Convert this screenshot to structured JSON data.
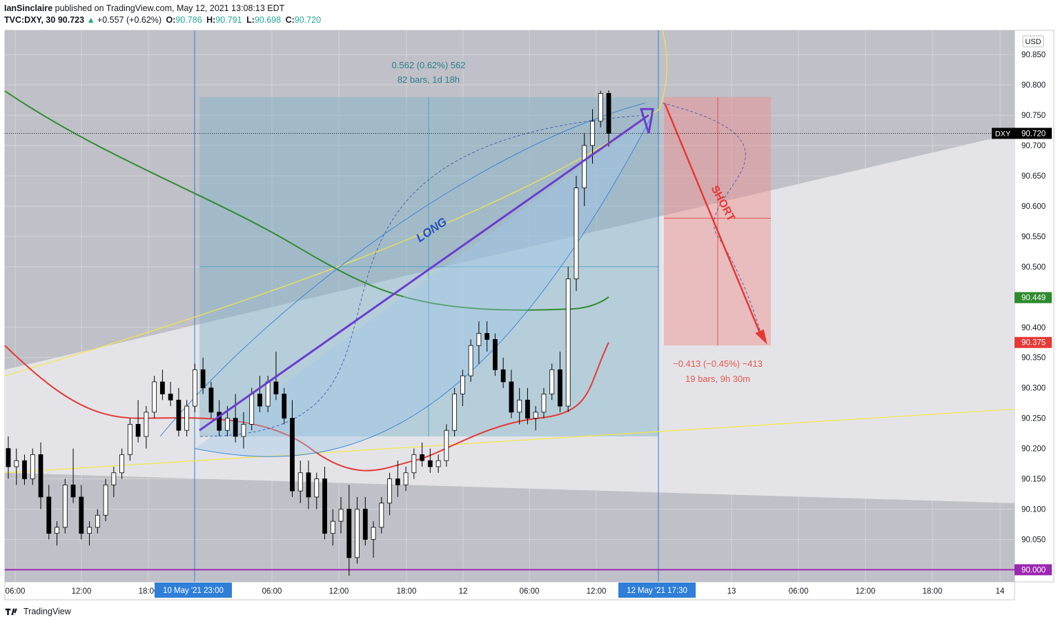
{
  "header": {
    "user": "IanSinclaire",
    "published_text": "published on TradingView.com, May 12, 2021 13:08:13 EDT",
    "symbol": "TVC:DXY, 30",
    "last": "90.723",
    "change": "+0.557 (+0.62%)",
    "o_label": "O:",
    "o_value": "90.786",
    "h_label": "H:",
    "h_value": "90.791",
    "l_label": "L:",
    "l_value": "90.698",
    "c_label": "C:",
    "c_value": "90.720"
  },
  "footer": {
    "brand": "TradingView"
  },
  "colors": {
    "up": "#26a69a",
    "bg": "#ffffff",
    "grid": "#e6e6e6",
    "long_zone": "#7fb3c8",
    "short_zone": "#f08c8c",
    "arrow_long": "#6a3dd1",
    "arrow_short": "#e53935",
    "ma_green": "#2e8b2e",
    "ma_red": "#e53935",
    "yellow": "#f5e642",
    "blue_line": "#2f7fd8",
    "purple_line": "#9c27b0"
  },
  "chart_data": {
    "type": "candlestick",
    "symbol": "DXY",
    "interval": "30",
    "currency": "USD",
    "ylim": [
      89.98,
      90.89
    ],
    "y_ticks": [
      "90.850",
      "90.800",
      "90.750",
      "90.700",
      "90.650",
      "90.600",
      "90.550",
      "90.500",
      "90.400",
      "90.350",
      "90.300",
      "90.250",
      "90.200",
      "90.150",
      "90.100",
      "90.050"
    ],
    "x_ticks": [
      "06:00",
      "12:00",
      "18:00",
      "06:00",
      "12:00",
      "18:00",
      "12",
      "06:00",
      "12:00",
      "13",
      "06:00",
      "12:00",
      "18:00",
      "14"
    ],
    "x_highlights": [
      "10 May '21  23:00",
      "12 May '21  17:30"
    ],
    "price_labels": [
      {
        "label": "DXY",
        "value": "90.720",
        "color": "#000000"
      },
      {
        "value": "90.449",
        "color": "#2e8b2e"
      },
      {
        "value": "90.375",
        "color": "#e53935"
      },
      {
        "value": "90.000",
        "color": "#9c27b0"
      }
    ],
    "annotations": {
      "long_label": "LONG",
      "short_label": "SHORT",
      "long_measure_1": "0.562 (0.62%) 562",
      "long_measure_2": "82 bars, 1d 18h",
      "short_measure_1": "−0.413 (−0.45%) −413",
      "short_measure_2": "19 bars, 9h 30m"
    },
    "levels": {
      "horizontal_purple": 90.0,
      "long_zone": [
        90.22,
        90.78
      ],
      "short_zone": [
        90.37,
        90.78
      ]
    },
    "candles": [
      [
        90.2,
        90.22,
        90.15,
        90.17
      ],
      [
        90.17,
        90.2,
        90.14,
        90.18
      ],
      [
        90.18,
        90.19,
        90.14,
        90.15
      ],
      [
        90.15,
        90.2,
        90.14,
        90.19
      ],
      [
        90.19,
        90.21,
        90.1,
        90.12
      ],
      [
        90.12,
        90.14,
        90.05,
        90.06
      ],
      [
        90.06,
        90.08,
        90.04,
        90.07
      ],
      [
        90.07,
        90.15,
        90.06,
        90.14
      ],
      [
        90.14,
        90.2,
        90.11,
        90.12
      ],
      [
        90.12,
        90.14,
        90.05,
        90.06
      ],
      [
        90.06,
        90.08,
        90.04,
        90.07
      ],
      [
        90.07,
        90.1,
        90.06,
        90.09
      ],
      [
        90.09,
        90.15,
        90.08,
        90.14
      ],
      [
        90.14,
        90.17,
        90.12,
        90.16
      ],
      [
        90.16,
        90.2,
        90.15,
        90.19
      ],
      [
        90.19,
        90.25,
        90.18,
        90.24
      ],
      [
        90.24,
        90.28,
        90.21,
        90.22
      ],
      [
        90.22,
        90.27,
        90.2,
        90.26
      ],
      [
        90.26,
        90.32,
        90.25,
        90.31
      ],
      [
        90.31,
        90.33,
        90.28,
        90.29
      ],
      [
        90.29,
        90.31,
        90.27,
        90.28
      ],
      [
        90.28,
        90.3,
        90.22,
        90.23
      ],
      [
        90.23,
        90.28,
        90.22,
        90.27
      ],
      [
        90.27,
        90.34,
        90.26,
        90.33
      ],
      [
        90.33,
        90.35,
        90.29,
        90.3
      ],
      [
        90.3,
        90.31,
        90.25,
        90.26
      ],
      [
        90.26,
        90.28,
        90.22,
        90.23
      ],
      [
        90.23,
        90.27,
        90.22,
        90.25
      ],
      [
        90.25,
        90.29,
        90.21,
        90.22
      ],
      [
        90.22,
        90.26,
        90.2,
        90.24
      ],
      [
        90.24,
        90.3,
        90.23,
        90.29
      ],
      [
        90.29,
        90.32,
        90.26,
        90.27
      ],
      [
        90.27,
        90.32,
        90.26,
        90.31
      ],
      [
        90.31,
        90.36,
        90.28,
        90.29
      ],
      [
        90.29,
        90.3,
        90.24,
        90.25
      ],
      [
        90.25,
        90.28,
        90.12,
        90.13
      ],
      [
        90.13,
        90.18,
        90.11,
        90.16
      ],
      [
        90.16,
        90.18,
        90.1,
        90.12
      ],
      [
        90.12,
        90.16,
        90.1,
        90.15
      ],
      [
        90.15,
        90.17,
        90.05,
        90.06
      ],
      [
        90.06,
        90.1,
        90.04,
        90.08
      ],
      [
        90.08,
        90.12,
        90.06,
        90.1
      ],
      [
        90.1,
        90.14,
        89.99,
        90.02
      ],
      [
        90.02,
        90.12,
        90.01,
        90.1
      ],
      [
        90.1,
        90.12,
        90.04,
        90.05
      ],
      [
        90.05,
        90.08,
        90.02,
        90.07
      ],
      [
        90.07,
        90.12,
        90.06,
        90.11
      ],
      [
        90.11,
        90.16,
        90.09,
        90.15
      ],
      [
        90.15,
        90.18,
        90.12,
        90.14
      ],
      [
        90.14,
        90.17,
        90.13,
        90.16
      ],
      [
        90.16,
        90.2,
        90.15,
        90.19
      ],
      [
        90.19,
        90.21,
        90.17,
        90.18
      ],
      [
        90.18,
        90.2,
        90.16,
        90.17
      ],
      [
        90.17,
        90.19,
        90.16,
        90.18
      ],
      [
        90.18,
        90.24,
        90.17,
        90.23
      ],
      [
        90.23,
        90.3,
        90.22,
        90.29
      ],
      [
        90.29,
        90.33,
        90.27,
        90.32
      ],
      [
        90.32,
        90.38,
        90.31,
        90.37
      ],
      [
        90.37,
        90.41,
        90.34,
        90.39
      ],
      [
        90.39,
        90.41,
        90.36,
        90.38
      ],
      [
        90.38,
        90.39,
        90.32,
        90.33
      ],
      [
        90.33,
        90.35,
        90.3,
        90.31
      ],
      [
        90.31,
        90.33,
        90.25,
        90.26
      ],
      [
        90.26,
        90.3,
        90.24,
        90.28
      ],
      [
        90.28,
        90.3,
        90.24,
        90.25
      ],
      [
        90.25,
        90.27,
        90.23,
        90.26
      ],
      [
        90.26,
        90.3,
        90.25,
        90.29
      ],
      [
        90.29,
        90.34,
        90.28,
        90.33
      ],
      [
        90.33,
        90.36,
        90.26,
        90.27
      ],
      [
        90.27,
        90.5,
        90.26,
        90.48
      ],
      [
        90.48,
        90.65,
        90.46,
        90.63
      ],
      [
        90.63,
        90.72,
        90.6,
        90.7
      ],
      [
        90.7,
        90.76,
        90.67,
        90.74
      ],
      [
        90.74,
        90.79,
        90.73,
        90.786
      ],
      [
        90.786,
        90.791,
        90.698,
        90.72
      ]
    ]
  }
}
